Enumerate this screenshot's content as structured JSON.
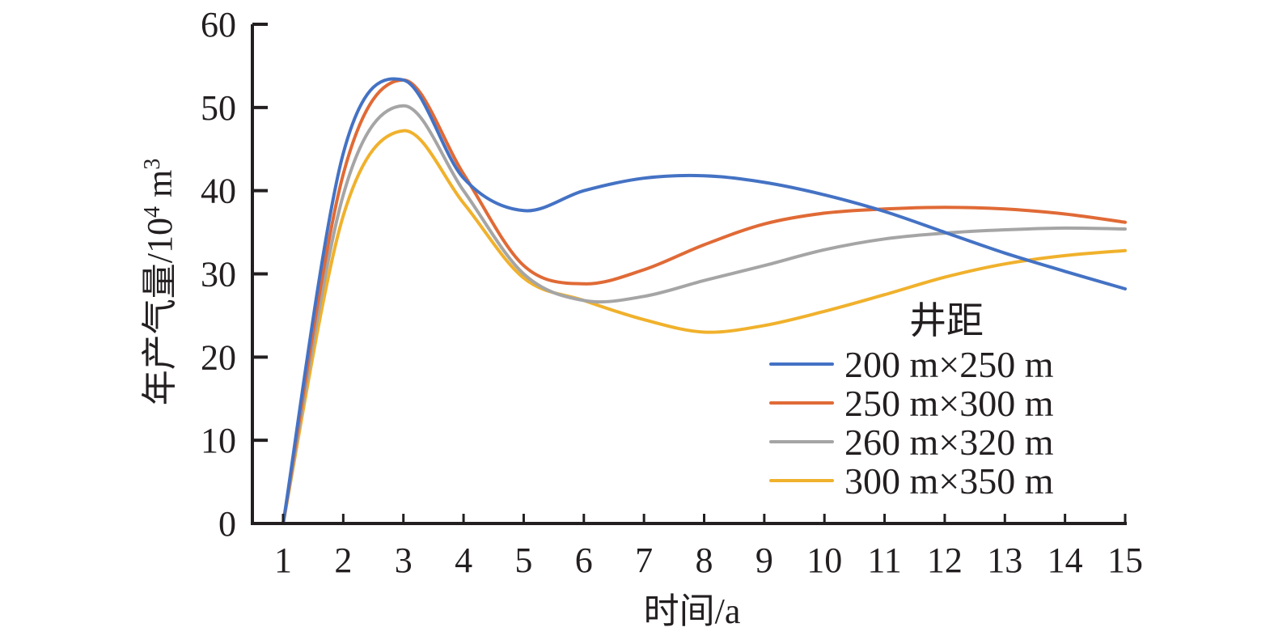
{
  "chart_data": {
    "type": "line",
    "title": "",
    "xlabel": "时间/a",
    "ylabel": "年产气量/10",
    "ylabel_sup1": "4",
    "ylabel_unit": " m",
    "ylabel_sup2": "3",
    "xlim": [
      1,
      15
    ],
    "ylim": [
      0,
      60
    ],
    "grid": false,
    "x": [
      1,
      2,
      3,
      4,
      5,
      6,
      7,
      8,
      9,
      10,
      11,
      12,
      13,
      14,
      15
    ],
    "x_tick_labels": [
      "1",
      "2",
      "3",
      "4",
      "5",
      "6",
      "7",
      "8",
      "9",
      "10",
      "11",
      "12",
      "13",
      "14",
      "15"
    ],
    "y_tick_labels": [
      "0",
      "10",
      "20",
      "30",
      "40",
      "50",
      "60"
    ],
    "y_ticks": [
      0,
      10,
      20,
      30,
      40,
      50,
      60
    ],
    "legend": {
      "title": "井距",
      "placement": "bottom-right"
    },
    "series": [
      {
        "name": "200 m×250 m",
        "color": "#4472c4",
        "values": [
          0,
          44.5,
          53.3,
          41.5,
          37.6,
          40.0,
          41.5,
          41.8,
          41.0,
          39.5,
          37.5,
          35.0,
          32.5,
          30.3,
          28.2
        ]
      },
      {
        "name": "250 m×300 m",
        "color": "#e06a36",
        "values": [
          0,
          42.0,
          53.3,
          42.0,
          31.0,
          28.8,
          30.5,
          33.5,
          36.0,
          37.3,
          37.8,
          38.0,
          37.8,
          37.2,
          36.2
        ]
      },
      {
        "name": "260 m×320 m",
        "color": "#a5a5a5",
        "values": [
          0,
          39.5,
          50.2,
          40.0,
          30.0,
          26.8,
          27.3,
          29.2,
          31.0,
          32.9,
          34.2,
          34.9,
          35.3,
          35.5,
          35.4
        ]
      },
      {
        "name": "300 m×350 m",
        "color": "#f0b12c",
        "values": [
          0,
          37.0,
          47.2,
          38.5,
          29.5,
          26.8,
          24.5,
          23.0,
          23.8,
          25.5,
          27.5,
          29.6,
          31.2,
          32.2,
          32.8
        ]
      }
    ]
  }
}
